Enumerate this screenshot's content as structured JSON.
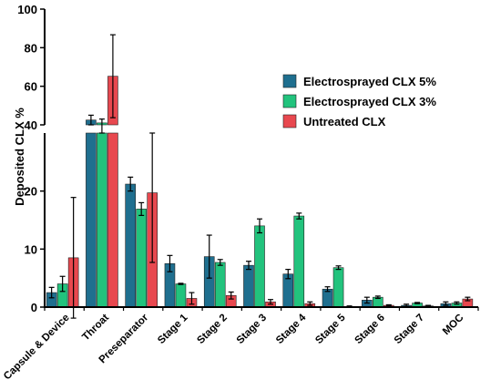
{
  "chart_data": {
    "type": "bar",
    "title": "",
    "xlabel": "",
    "ylabel": "Deposited  CLX %",
    "axis_break": {
      "lower_range": [
        0,
        30
      ],
      "upper_range": [
        40,
        100
      ]
    },
    "lower_ticks": [
      "0",
      "10",
      "20"
    ],
    "upper_ticks": [
      "40",
      "60",
      "80",
      "100"
    ],
    "lower_tick_values": [
      0,
      10,
      20
    ],
    "upper_tick_values": [
      40,
      60,
      80,
      100
    ],
    "grid": false,
    "legend_position": "top-right",
    "categories": [
      "Capsule & Device",
      "Throat",
      "Preseparator",
      "Stage 1",
      "Stage 2",
      "Stage 3",
      "Stage 4",
      "Stage 5",
      "Stage 6",
      "Stage 7",
      "MOC"
    ],
    "series": [
      {
        "name": "Electrosprayed  CLX 5%",
        "color": "#1f6f8f",
        "values": [
          2.5,
          42.5,
          21.2,
          7.5,
          8.7,
          7.2,
          5.7,
          3.1,
          1.2,
          0.3,
          0.6
        ],
        "errors": [
          0.9,
          2.5,
          1.2,
          1.4,
          3.7,
          0.7,
          0.8,
          0.4,
          0.5,
          0.2,
          0.3
        ]
      },
      {
        "name": "Electrosprayed  CLX 3%",
        "color": "#22c37d",
        "values": [
          4.0,
          41.0,
          16.9,
          4.0,
          7.7,
          14.0,
          15.7,
          6.8,
          1.7,
          0.7,
          0.7
        ],
        "errors": [
          1.3,
          2.0,
          1.1,
          0.1,
          0.5,
          1.2,
          0.5,
          0.3,
          0.2,
          0.1,
          0.2
        ]
      },
      {
        "name": "Untreated   CLX",
        "color": "#e8484f",
        "values": [
          8.5,
          65.2,
          19.7,
          1.5,
          2.0,
          0.9,
          0.6,
          0.1,
          0.3,
          0.2,
          1.4
        ],
        "errors": [
          10.4,
          21.5,
          12.0,
          1.0,
          0.6,
          0.4,
          0.3,
          0.1,
          0.1,
          0.1,
          0.3
        ]
      }
    ]
  }
}
